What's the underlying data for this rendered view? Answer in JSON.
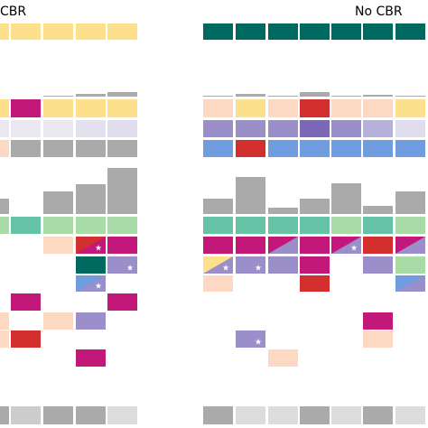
{
  "labels": {
    "left": "CBR",
    "right": "No CBR"
  }
}
